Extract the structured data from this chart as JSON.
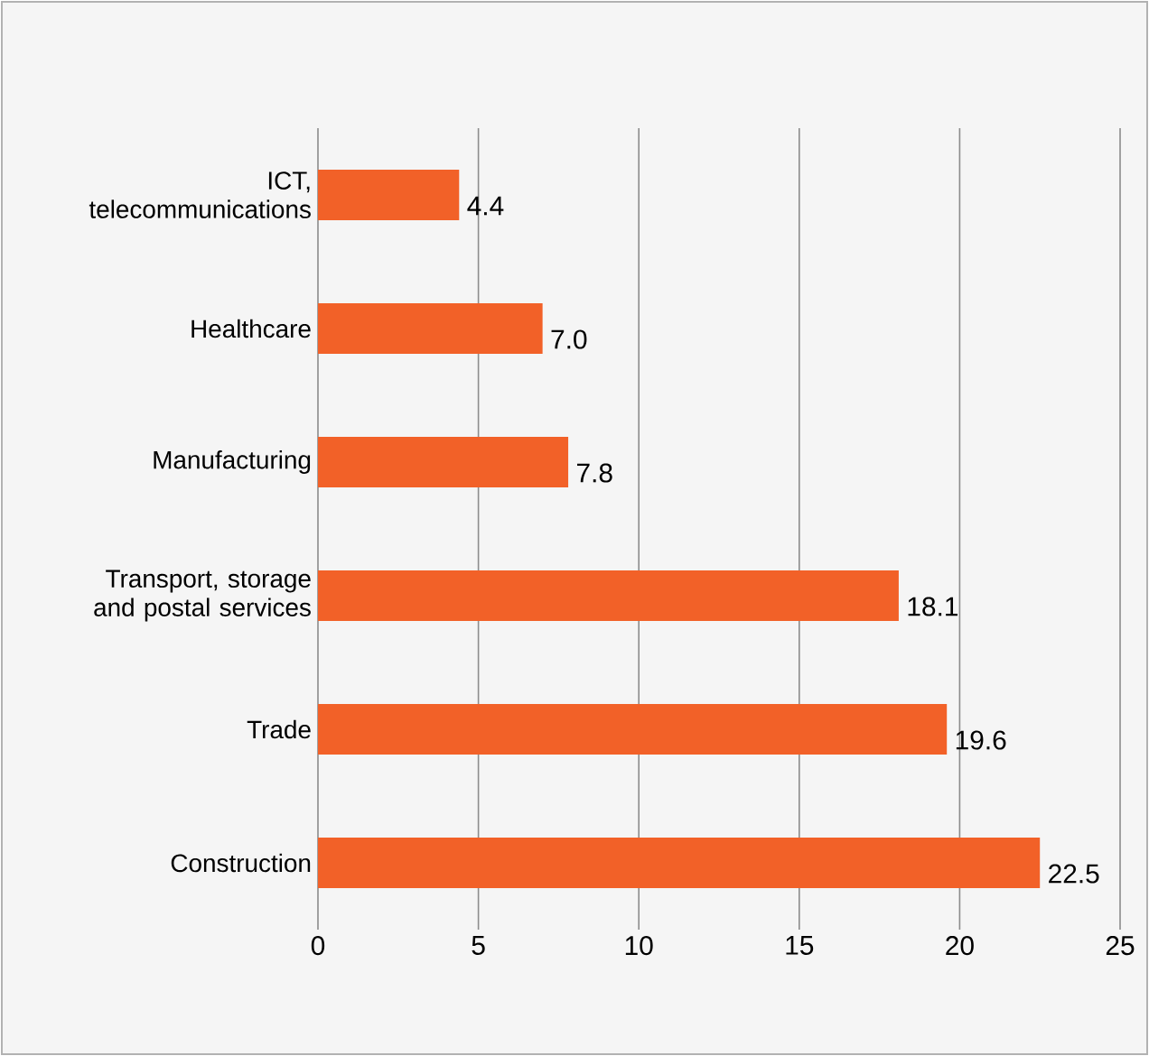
{
  "chart_data": {
    "type": "bar",
    "orientation": "horizontal",
    "categories": [
      "ICT, telecommunications",
      "Healthcare",
      "Manufacturing",
      "Transport, storage and postal services",
      "Trade",
      "Construction"
    ],
    "values": [
      4.4,
      7.0,
      7.8,
      18.1,
      19.6,
      22.5
    ],
    "value_labels": [
      "4.4",
      "7.0",
      "7.8",
      "18.1",
      "19.6",
      "22.5"
    ],
    "color": "#f26128",
    "xlim": [
      0,
      25
    ],
    "xticks": [
      0,
      5,
      10,
      15,
      20,
      25
    ],
    "grid": "x"
  }
}
